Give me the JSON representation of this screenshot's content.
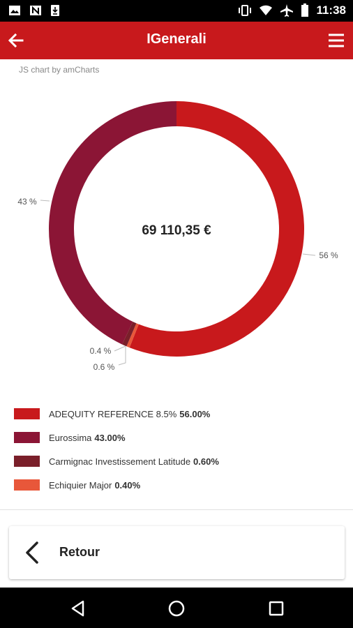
{
  "status_bar": {
    "time": "11:38",
    "icons": [
      "image-icon",
      "n-notification-icon",
      "download-icon",
      "vibrate-icon",
      "wifi-icon",
      "airplane-icon",
      "battery-icon"
    ]
  },
  "app_bar": {
    "title": "IGenerali",
    "back_icon": "arrow-left-icon",
    "menu_icon": "hamburger-menu-icon",
    "color": "#c8191c"
  },
  "credit": "JS chart by amCharts",
  "center_value": "69 110,35 €",
  "chart_data": {
    "type": "pie",
    "donut": true,
    "slices": [
      {
        "name": "ADEQUITY REFERENCE 8.5%",
        "value": 56.0,
        "label": "56 %",
        "color": "#c8191c"
      },
      {
        "name": "Echiquier Major",
        "value": 0.4,
        "label": "0.4 %",
        "color": "#e8573a"
      },
      {
        "name": "Carmignac Investissement Latitude",
        "value": 0.6,
        "label": "0.6 %",
        "color": "#7a1f2a"
      },
      {
        "name": "Eurossima",
        "value": 43.0,
        "label": "43 %",
        "color": "#8b1535"
      }
    ]
  },
  "legend": [
    {
      "name": "ADEQUITY REFERENCE 8.5%",
      "value": "56.00%",
      "color": "#c8191c"
    },
    {
      "name": "Eurossima",
      "value": "43.00%",
      "color": "#8b1535"
    },
    {
      "name": "Carmignac Investissement Latitude",
      "value": "0.60%",
      "color": "#7a1f2a"
    },
    {
      "name": "Echiquier Major",
      "value": "0.40%",
      "color": "#e8573a"
    }
  ],
  "retour_button": {
    "label": "Retour",
    "icon": "chevron-left-icon"
  },
  "nav_bar": {
    "icons": [
      "back-triangle-icon",
      "home-circle-icon",
      "recents-square-icon"
    ]
  }
}
